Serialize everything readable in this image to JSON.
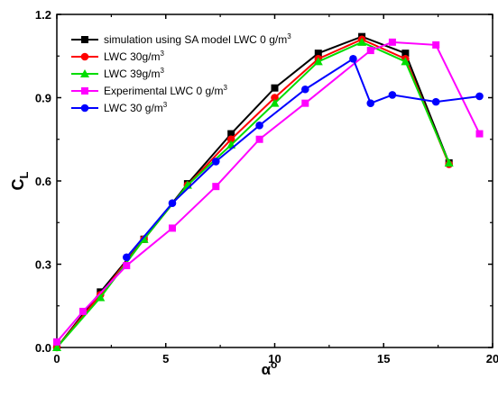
{
  "chart_data": {
    "type": "line",
    "xlabel": "α",
    "xlabel_sup": "o",
    "ylabel": "C",
    "ylabel_sub": "L",
    "xlim": [
      0,
      20
    ],
    "ylim": [
      0,
      1.2
    ],
    "x_ticks": [
      "0",
      "5",
      "10",
      "15",
      "20"
    ],
    "y_ticks": [
      "0.0",
      "0.3",
      "0.6",
      "0.9",
      "1.2"
    ],
    "grid": false,
    "legend_position": "top-left",
    "series": [
      {
        "name": "simulation using SA model LWC 0 g/m",
        "name_sup": "3",
        "color": "#000000",
        "marker": "square",
        "x": [
          0,
          2,
          4,
          6,
          8,
          10,
          12,
          14,
          16,
          18
        ],
        "y": [
          0.0,
          0.2,
          0.39,
          0.59,
          0.77,
          0.935,
          1.06,
          1.12,
          1.06,
          0.665
        ]
      },
      {
        "name": "LWC 30g/m",
        "name_sup": "3",
        "color": "#ff0000",
        "marker": "circle",
        "x": [
          0,
          2,
          4,
          6,
          8,
          10,
          12,
          14,
          16,
          18
        ],
        "y": [
          0.0,
          0.19,
          0.39,
          0.585,
          0.75,
          0.9,
          1.04,
          1.11,
          1.04,
          0.66
        ]
      },
      {
        "name": "LWC 39g/m",
        "name_sup": "3",
        "color": "#00dd00",
        "marker": "triangle",
        "x": [
          0,
          2,
          4,
          6,
          8,
          10,
          12,
          14,
          16,
          18
        ],
        "y": [
          0.0,
          0.18,
          0.39,
          0.585,
          0.73,
          0.88,
          1.03,
          1.1,
          1.03,
          0.665
        ]
      },
      {
        "name": "Experimental LWC 0 g/m",
        "name_sup": "3",
        "color": "#ff00ff",
        "marker": "square",
        "x": [
          0,
          1.2,
          3.2,
          5.3,
          7.3,
          9.3,
          11.4,
          14.4,
          15.4,
          17.4,
          19.4
        ],
        "y": [
          0.02,
          0.13,
          0.295,
          0.43,
          0.58,
          0.75,
          0.88,
          1.07,
          1.1,
          1.09,
          0.77
        ]
      },
      {
        "name": "LWC  30 g/m",
        "name_sup": "3",
        "color": "#0000ff",
        "marker": "circle",
        "x": [
          3.2,
          5.3,
          7.3,
          9.3,
          11.4,
          13.6,
          14.4,
          15.4,
          17.4,
          19.4
        ],
        "y": [
          0.325,
          0.52,
          0.67,
          0.8,
          0.93,
          1.04,
          0.88,
          0.91,
          0.885,
          0.905
        ]
      }
    ]
  }
}
